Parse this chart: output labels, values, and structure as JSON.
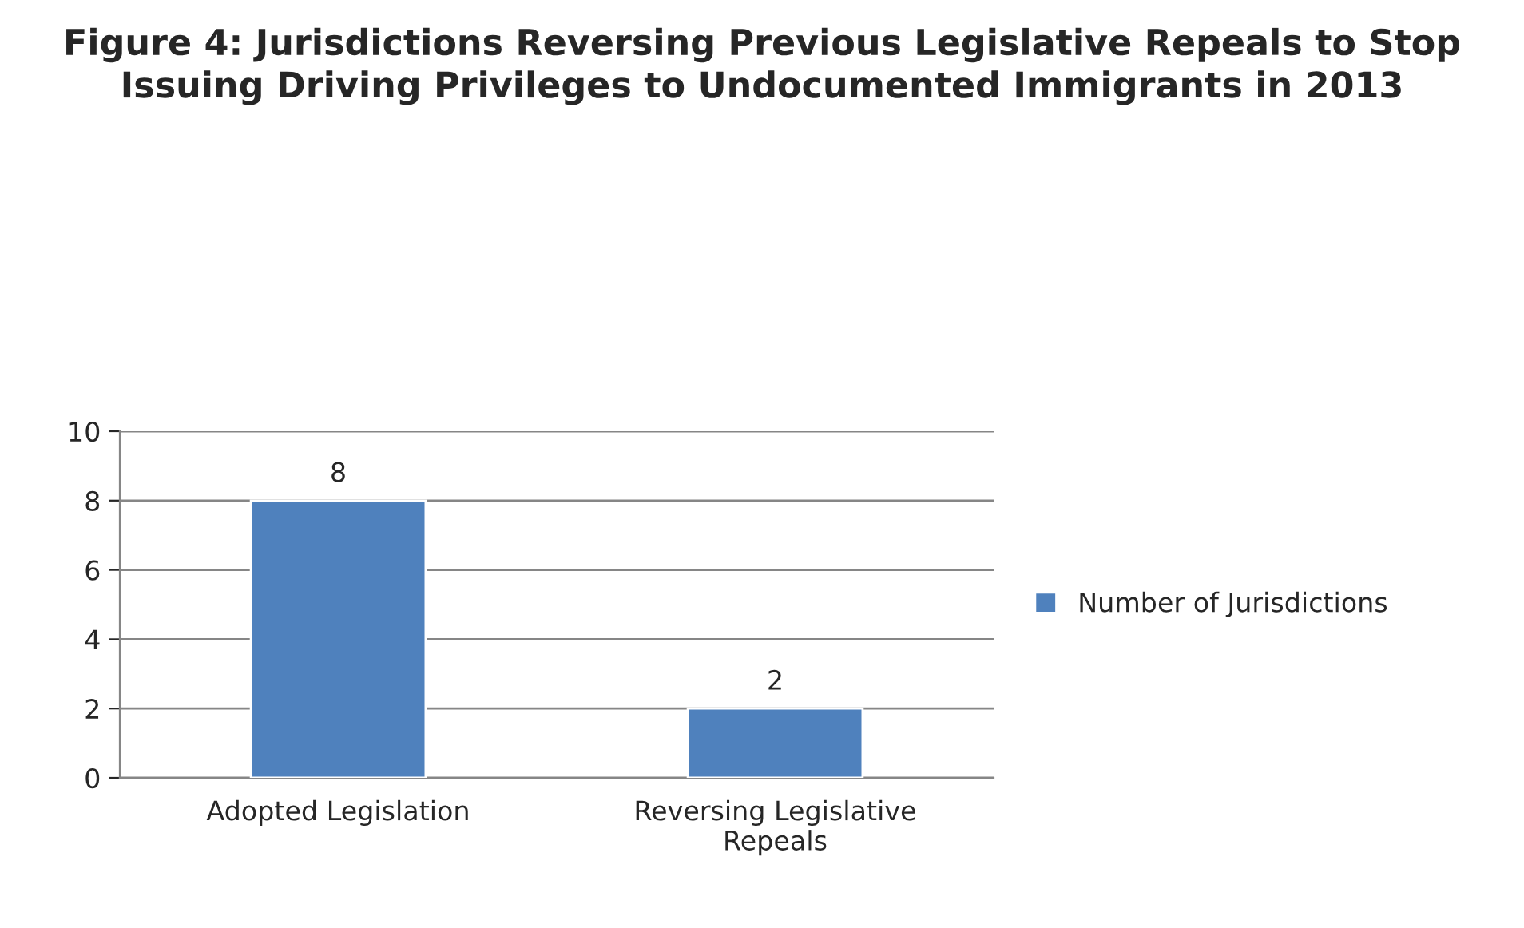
{
  "chart_data": {
    "type": "bar",
    "title": "Figure 4: Jurisdictions Reversing Previous Legislative Repeals to Stop Issuing Driving Privileges to Undocumented Immigrants in 2013",
    "categories": [
      "Adopted Legislation",
      "Reversing Legislative Repeals"
    ],
    "series": [
      {
        "name": "Number of Jurisdictions",
        "color": "#4f81bd",
        "values": [
          8,
          2
        ]
      }
    ],
    "ylim": [
      0,
      10
    ],
    "yticks": [
      0,
      2,
      4,
      6,
      8,
      10
    ],
    "grid": "y",
    "legend": "right",
    "data_labels": true
  }
}
